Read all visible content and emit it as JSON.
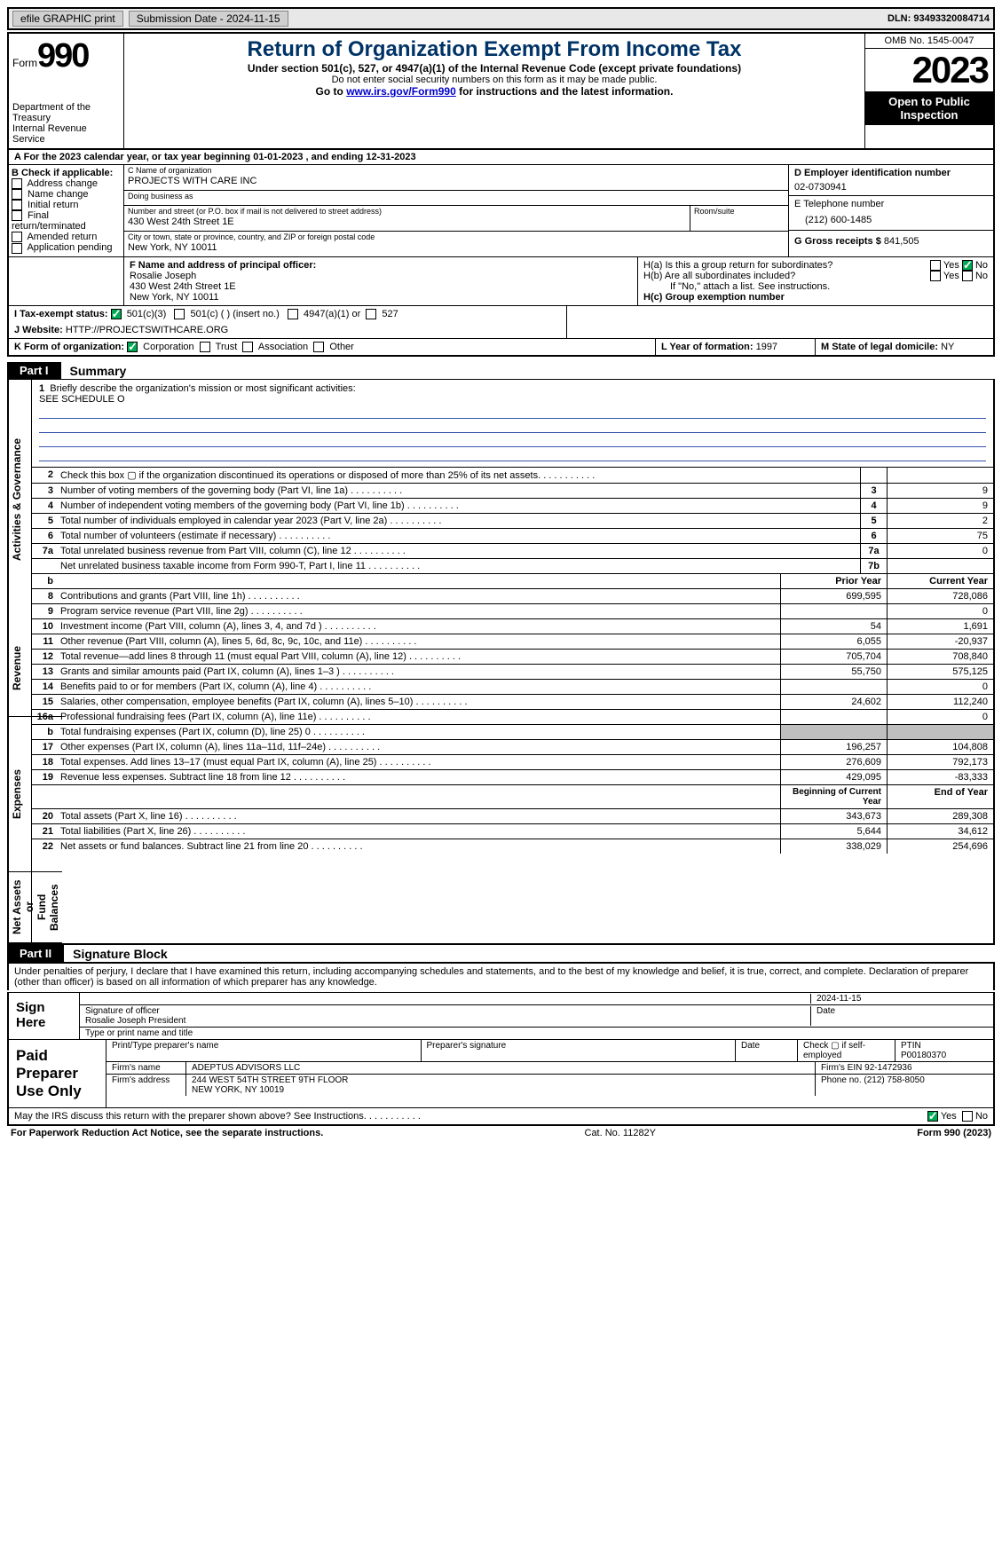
{
  "colors": {
    "title": "#003366",
    "link": "#0000cc",
    "black": "#000000",
    "shade": "#bfbfbf",
    "openpub_bg": "#000000",
    "openpub_fg": "#ffffff"
  },
  "topbar": {
    "efile": "efile GRAPHIC print",
    "submission": "Submission Date - 2024-11-15",
    "dln": "DLN: 93493320084714"
  },
  "header": {
    "form_label": "Form",
    "form_num": "990",
    "title": "Return of Organization Exempt From Income Tax",
    "sub": "Under section 501(c), 527, or 4947(a)(1) of the Internal Revenue Code (except private foundations)",
    "sub2": "Do not enter social security numbers on this form as it may be made public.",
    "link_pre": "Go to ",
    "link": "www.irs.gov/Form990",
    "link_post": " for instructions and the latest information.",
    "dept": "Department of the Treasury\nInternal Revenue Service",
    "omb": "OMB No. 1545-0047",
    "year": "2023",
    "open_pub": "Open to Public\nInspection"
  },
  "period": "For the 2023 calendar year, or tax year beginning 01-01-2023   , and ending 12-31-2023",
  "sectionB": {
    "label": "B Check if applicable:",
    "opts": [
      "Address change",
      "Name change",
      "Initial return",
      "Final return/terminated",
      "Amended return",
      "Application pending"
    ]
  },
  "sectionC": {
    "name_lbl": "C Name of organization",
    "name": "PROJECTS WITH CARE INC",
    "dba_lbl": "Doing business as",
    "dba": "",
    "street_lbl": "Number and street (or P.O. box if mail is not delivered to street address)",
    "street": "430 West 24th Street 1E",
    "room_lbl": "Room/suite",
    "city_lbl": "City or town, state or province, country, and ZIP or foreign postal code",
    "city": "New York, NY  10011"
  },
  "sectionD": {
    "ein_lbl": "D Employer identification number",
    "ein": "02-0730941",
    "phone_lbl": "E Telephone number",
    "phone": "(212) 600-1485",
    "gross_lbl": "G Gross receipts $",
    "gross": "841,505"
  },
  "sectionF": {
    "lbl": "F  Name and address of principal officer:",
    "name": "Rosalie Joseph",
    "addr1": "430 West 24th Street 1E",
    "addr2": "New York, NY  10011"
  },
  "sectionH": {
    "a_lbl": "H(a)  Is this a group return for subordinates?",
    "a_yes": "Yes",
    "a_no": "No",
    "a_checked": "no",
    "b_lbl": "H(b)  Are all subordinates included?",
    "b_yes": "Yes",
    "b_no": "No",
    "b_note": "If \"No,\" attach a list. See instructions.",
    "c_lbl": "H(c)  Group exemption number"
  },
  "rowI": {
    "lbl": "I   Tax-exempt status:",
    "o1": "501(c)(3)",
    "o1_checked": true,
    "o2": "501(c) (  ) (insert no.)",
    "o3": "4947(a)(1) or",
    "o4": "527"
  },
  "rowJ": {
    "lbl": "J   Website:",
    "val": "HTTP://PROJECTSWITHCARE.ORG"
  },
  "rowK": {
    "lbl": "K Form of organization:",
    "o1": "Corporation",
    "o1_checked": true,
    "o2": "Trust",
    "o3": "Association",
    "o4": "Other"
  },
  "rowL": {
    "lbl": "L Year of formation:",
    "val": "1997"
  },
  "rowM": {
    "lbl": "M State of legal domicile:",
    "val": "NY"
  },
  "part1": {
    "tag": "Part I",
    "title": "Summary"
  },
  "mission": {
    "n": "1",
    "lbl": "Briefly describe the organization's mission or most significant activities:",
    "text": "SEE SCHEDULE O"
  },
  "gov_rows": [
    {
      "n": "2",
      "d": "Check this box ▢ if the organization discontinued its operations or disposed of more than 25% of its net assets.",
      "lab": "",
      "v": ""
    },
    {
      "n": "3",
      "d": "Number of voting members of the governing body (Part VI, line 1a)",
      "lab": "3",
      "v": "9"
    },
    {
      "n": "4",
      "d": "Number of independent voting members of the governing body (Part VI, line 1b)",
      "lab": "4",
      "v": "9"
    },
    {
      "n": "5",
      "d": "Total number of individuals employed in calendar year 2023 (Part V, line 2a)",
      "lab": "5",
      "v": "2"
    },
    {
      "n": "6",
      "d": "Total number of volunteers (estimate if necessary)",
      "lab": "6",
      "v": "75"
    },
    {
      "n": "7a",
      "d": "Total unrelated business revenue from Part VIII, column (C), line 12",
      "lab": "7a",
      "v": "0"
    },
    {
      "n": "",
      "d": "Net unrelated business taxable income from Form 990-T, Part I, line 11",
      "lab": "7b",
      "v": ""
    }
  ],
  "sections": {
    "activities_label": "Activities & Governance",
    "revenue_label": "Revenue",
    "expenses_label": "Expenses",
    "netassets_label": "Net Assets or\nFund Balances",
    "col_b": "b",
    "col_prior": "Prior Year",
    "col_current": "Current Year",
    "col_begin": "Beginning of Current Year",
    "col_end": "End of Year",
    "revenue": [
      {
        "n": "8",
        "d": "Contributions and grants (Part VIII, line 1h)",
        "c1": "699,595",
        "c2": "728,086"
      },
      {
        "n": "9",
        "d": "Program service revenue (Part VIII, line 2g)",
        "c1": "",
        "c2": "0"
      },
      {
        "n": "10",
        "d": "Investment income (Part VIII, column (A), lines 3, 4, and 7d )",
        "c1": "54",
        "c2": "1,691"
      },
      {
        "n": "11",
        "d": "Other revenue (Part VIII, column (A), lines 5, 6d, 8c, 9c, 10c, and 11e)",
        "c1": "6,055",
        "c2": "-20,937"
      },
      {
        "n": "12",
        "d": "Total revenue—add lines 8 through 11 (must equal Part VIII, column (A), line 12)",
        "c1": "705,704",
        "c2": "708,840"
      }
    ],
    "expenses": [
      {
        "n": "13",
        "d": "Grants and similar amounts paid (Part IX, column (A), lines 1–3 )",
        "c1": "55,750",
        "c2": "575,125"
      },
      {
        "n": "14",
        "d": "Benefits paid to or for members (Part IX, column (A), line 4)",
        "c1": "",
        "c2": "0"
      },
      {
        "n": "15",
        "d": "Salaries, other compensation, employee benefits (Part IX, column (A), lines 5–10)",
        "c1": "24,602",
        "c2": "112,240"
      },
      {
        "n": "16a",
        "d": "Professional fundraising fees (Part IX, column (A), line 11e)",
        "c1": "",
        "c2": "0"
      },
      {
        "n": "b",
        "d": "Total fundraising expenses (Part IX, column (D), line 25) 0",
        "c1": "SHADE",
        "c2": "SHADE"
      },
      {
        "n": "17",
        "d": "Other expenses (Part IX, column (A), lines 11a–11d, 11f–24e)",
        "c1": "196,257",
        "c2": "104,808"
      },
      {
        "n": "18",
        "d": "Total expenses. Add lines 13–17 (must equal Part IX, column (A), line 25)",
        "c1": "276,609",
        "c2": "792,173"
      },
      {
        "n": "19",
        "d": "Revenue less expenses. Subtract line 18 from line 12",
        "c1": "429,095",
        "c2": "-83,333"
      }
    ],
    "netassets": [
      {
        "n": "20",
        "d": "Total assets (Part X, line 16)",
        "c1": "343,673",
        "c2": "289,308"
      },
      {
        "n": "21",
        "d": "Total liabilities (Part X, line 26)",
        "c1": "5,644",
        "c2": "34,612"
      },
      {
        "n": "22",
        "d": "Net assets or fund balances. Subtract line 21 from line 20",
        "c1": "338,029",
        "c2": "254,696"
      }
    ]
  },
  "part2": {
    "tag": "Part II",
    "title": "Signature Block"
  },
  "penalty": "Under penalties of perjury, I declare that I have examined this return, including accompanying schedules and statements, and to the best of my knowledge and belief, it is true, correct, and complete. Declaration of preparer (other than officer) is based on all information of which preparer has any knowledge.",
  "sign": {
    "label": "Sign Here",
    "date": "2024-11-15",
    "sig_lbl": "Signature of officer",
    "sig_name": "Rosalie Joseph President",
    "date_lbl": "Date",
    "type_lbl": "Type or print name and title"
  },
  "preparer": {
    "label": "Paid Preparer Use Only",
    "h_print": "Print/Type preparer's name",
    "h_sig": "Preparer's signature",
    "h_date": "Date",
    "h_self": "Check ▢ if self-employed",
    "h_ptin": "PTIN",
    "ptin": "P00180370",
    "firm_name_lbl": "Firm's name",
    "firm_name": "ADEPTUS ADVISORS LLC",
    "firm_ein_lbl": "Firm's EIN",
    "firm_ein": "92-1472936",
    "firm_addr_lbl": "Firm's address",
    "firm_addr": "244 WEST 54TH STREET 9TH FLOOR\nNEW YORK, NY  10019",
    "phone_lbl": "Phone no.",
    "phone": "(212) 758-8050"
  },
  "discuss": {
    "text": "May the IRS discuss this return with the preparer shown above? See Instructions.",
    "yes": "Yes",
    "no": "No",
    "checked": "yes"
  },
  "footer": {
    "left": "For Paperwork Reduction Act Notice, see the separate instructions.",
    "mid": "Cat. No. 11282Y",
    "right": "Form 990 (2023)"
  }
}
